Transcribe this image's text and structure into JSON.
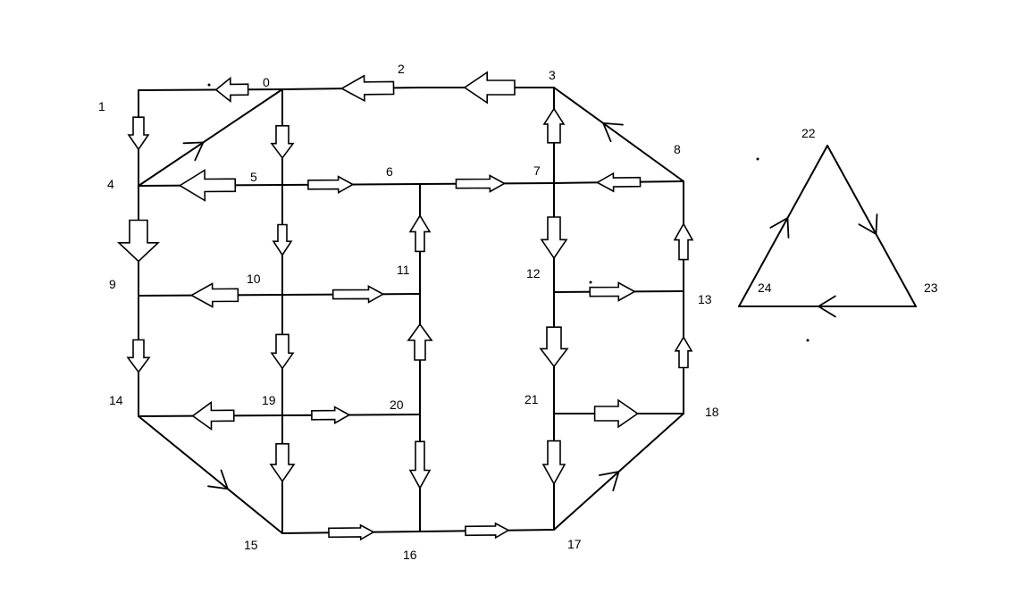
{
  "diagram": {
    "nodes": [
      {
        "id": "0",
        "label": "0"
      },
      {
        "id": "1",
        "label": "1"
      },
      {
        "id": "2",
        "label": "2"
      },
      {
        "id": "3",
        "label": "3"
      },
      {
        "id": "4",
        "label": "4"
      },
      {
        "id": "5",
        "label": "5"
      },
      {
        "id": "6",
        "label": "6"
      },
      {
        "id": "7",
        "label": "7"
      },
      {
        "id": "8",
        "label": "8"
      },
      {
        "id": "9",
        "label": "9"
      },
      {
        "id": "10",
        "label": "10"
      },
      {
        "id": "11",
        "label": "11"
      },
      {
        "id": "12",
        "label": "12"
      },
      {
        "id": "13",
        "label": "13"
      },
      {
        "id": "14",
        "label": "14"
      },
      {
        "id": "15",
        "label": "15"
      },
      {
        "id": "16",
        "label": "16"
      },
      {
        "id": "17",
        "label": "17"
      },
      {
        "id": "18",
        "label": "18"
      },
      {
        "id": "19",
        "label": "19"
      },
      {
        "id": "20",
        "label": "20"
      },
      {
        "id": "21",
        "label": "21"
      },
      {
        "id": "22",
        "label": "22"
      },
      {
        "id": "23",
        "label": "23"
      },
      {
        "id": "24",
        "label": "24"
      }
    ],
    "edges": [
      {
        "from": "0",
        "to": "1"
      },
      {
        "from": "2",
        "to": "0"
      },
      {
        "from": "3",
        "to": "2"
      },
      {
        "from": "4",
        "to": "0"
      },
      {
        "from": "8",
        "to": "3"
      },
      {
        "from": "1",
        "to": "4"
      },
      {
        "from": "0",
        "to": "5"
      },
      {
        "from": "7",
        "to": "3"
      },
      {
        "from": "5",
        "to": "4"
      },
      {
        "from": "5",
        "to": "6"
      },
      {
        "from": "6",
        "to": "7"
      },
      {
        "from": "8",
        "to": "7"
      },
      {
        "from": "4",
        "to": "9"
      },
      {
        "from": "5",
        "to": "10"
      },
      {
        "from": "11",
        "to": "6"
      },
      {
        "from": "7",
        "to": "12"
      },
      {
        "from": "13",
        "to": "8"
      },
      {
        "from": "10",
        "to": "9"
      },
      {
        "from": "10",
        "to": "11"
      },
      {
        "from": "12",
        "to": "13"
      },
      {
        "from": "9",
        "to": "14"
      },
      {
        "from": "10",
        "to": "19"
      },
      {
        "from": "20",
        "to": "11"
      },
      {
        "from": "12",
        "to": "21"
      },
      {
        "from": "18",
        "to": "13"
      },
      {
        "from": "19",
        "to": "14"
      },
      {
        "from": "19",
        "to": "20"
      },
      {
        "from": "21",
        "to": "18"
      },
      {
        "from": "14",
        "to": "15"
      },
      {
        "from": "19",
        "to": "15"
      },
      {
        "from": "20",
        "to": "16"
      },
      {
        "from": "21",
        "to": "17"
      },
      {
        "from": "17",
        "to": "18"
      },
      {
        "from": "15",
        "to": "16"
      },
      {
        "from": "16",
        "to": "17"
      },
      {
        "from": "24",
        "to": "22"
      },
      {
        "from": "22",
        "to": "23"
      },
      {
        "from": "23",
        "to": "24"
      }
    ]
  }
}
